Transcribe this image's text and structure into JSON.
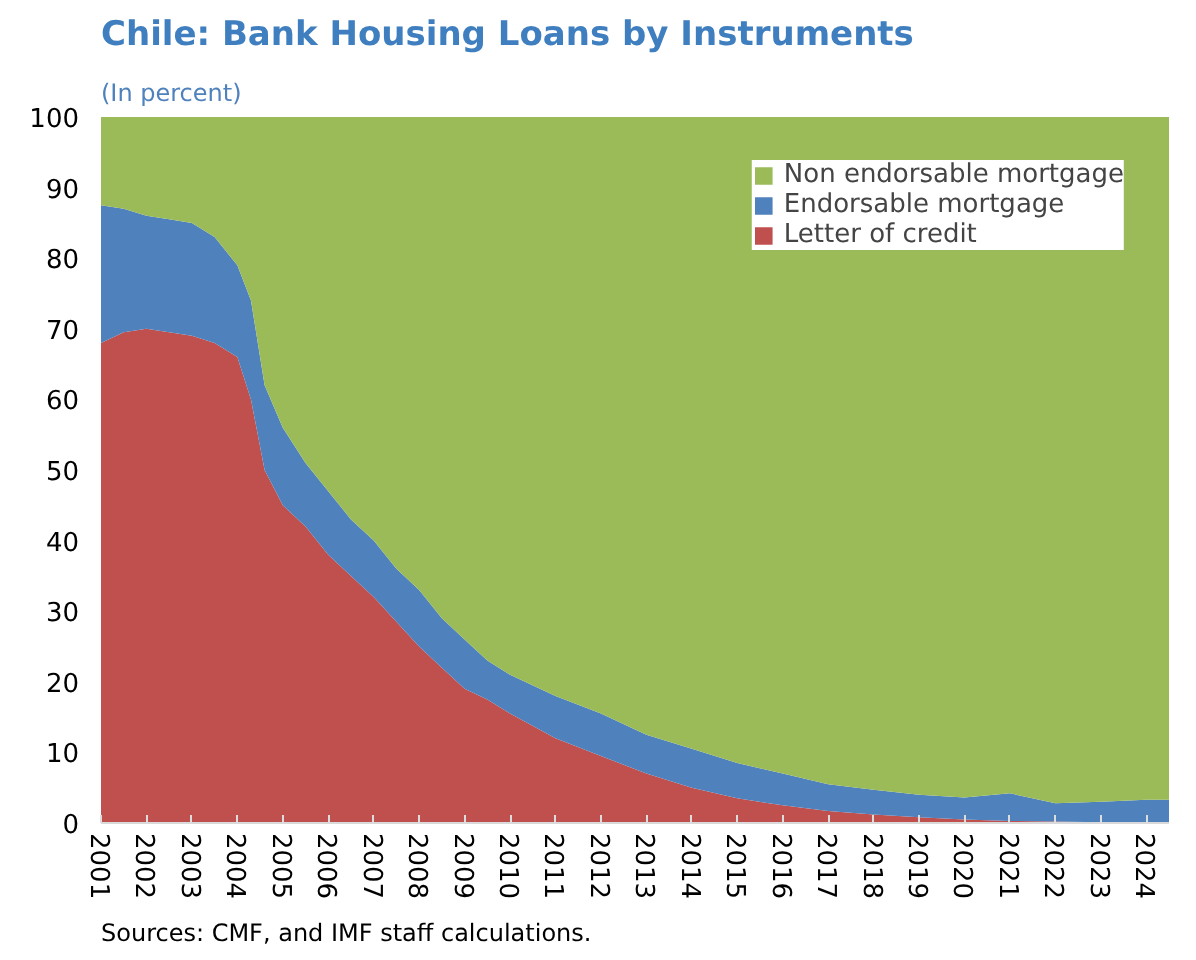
{
  "chart_data": {
    "type": "area",
    "title": "Chile: Bank Housing Loans by Instruments",
    "subtitle": "(In percent)",
    "stacked": true,
    "x": [
      2001,
      2001.5,
      2002,
      2002.5,
      2003,
      2003.5,
      2004,
      2004.3,
      2004.6,
      2005,
      2005.5,
      2006,
      2006.5,
      2007,
      2007.5,
      2008,
      2008.5,
      2009,
      2009.5,
      2010,
      2011,
      2012,
      2013,
      2014,
      2015,
      2016,
      2017,
      2018,
      2019,
      2020,
      2021,
      2022,
      2023,
      2024,
      2024.5
    ],
    "series": [
      {
        "name": "Letter of credit",
        "color": "#c0504d",
        "values": [
          68,
          69.5,
          70,
          69.5,
          69,
          68,
          66,
          60,
          50,
          45,
          42,
          38,
          35,
          32,
          28.5,
          25,
          22,
          19,
          17.5,
          15.5,
          12,
          9.5,
          7,
          5,
          3.5,
          2.5,
          1.7,
          1.2,
          0.8,
          0.5,
          0.3,
          0.2,
          0.1,
          0.1,
          0.1
        ]
      },
      {
        "name": "Endorsable mortgage",
        "color": "#4f81bd",
        "values": [
          19.5,
          17.5,
          16,
          16,
          16,
          15,
          13,
          14,
          12,
          11,
          9,
          9,
          8,
          8,
          7.5,
          8,
          7,
          7,
          5.5,
          5.5,
          6,
          6,
          5.5,
          5.5,
          5,
          4.5,
          3.8,
          3.5,
          3.2,
          3.1,
          3.9,
          2.6,
          2.9,
          3.2,
          3.2
        ]
      },
      {
        "name": "Non endorsable mortgage",
        "color": "#9bbb59",
        "values": [
          12.5,
          13,
          14,
          14.5,
          15,
          17,
          21,
          26,
          38,
          44,
          49,
          53,
          57,
          60,
          64,
          67,
          71,
          74,
          77,
          79,
          82,
          84.5,
          87.5,
          89.5,
          91.5,
          93,
          94.5,
          95.3,
          96,
          96.4,
          95.8,
          97.2,
          97,
          96.7,
          96.7
        ]
      }
    ],
    "xlim": [
      2001,
      2024.5
    ],
    "xticks": [
      2001,
      2002,
      2003,
      2004,
      2005,
      2006,
      2007,
      2008,
      2009,
      2010,
      2011,
      2012,
      2013,
      2014,
      2015,
      2016,
      2017,
      2018,
      2019,
      2020,
      2021,
      2022,
      2023,
      2024
    ],
    "ylim": [
      0,
      100
    ],
    "yticks": [
      0,
      10,
      20,
      30,
      40,
      50,
      60,
      70,
      80,
      90,
      100
    ],
    "grid": false,
    "legend": "top right",
    "annotations": [
      "Sources: CMF, and IMF staff calculations."
    ]
  }
}
